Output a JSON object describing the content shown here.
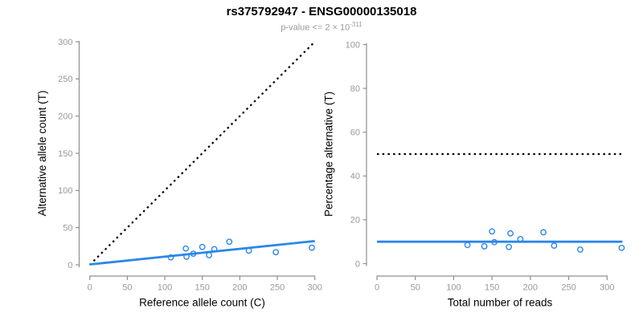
{
  "header": {
    "title": "rs375792947 - ENSG00000135018",
    "subtitle_prefix": "p-value <= 2 × 10",
    "subtitle_exponent": "-311"
  },
  "colors": {
    "accent_blue": "#2B87E8",
    "line_black": "#000000",
    "axis_gray": "#8F8F8F",
    "tick_label_gray": "#999999",
    "axis_title_color": "#000000"
  },
  "chart_data": [
    {
      "type": "scatter",
      "panel": "left",
      "xlabel": "Reference allele count (C)",
      "ylabel": "Alternative allele count (T)",
      "xlim": [
        0,
        300
      ],
      "ylim": [
        0,
        300
      ],
      "xticks": [
        0,
        50,
        100,
        150,
        200,
        250,
        300
      ],
      "yticks": [
        0,
        50,
        100,
        150,
        200,
        250,
        300
      ],
      "grid": false,
      "marker": {
        "shape": "open-circle",
        "radius": 3.2
      },
      "points": [
        [
          108,
          10
        ],
        [
          128,
          22
        ],
        [
          129,
          11
        ],
        [
          138,
          15
        ],
        [
          150,
          24
        ],
        [
          159,
          13
        ],
        [
          166,
          21
        ],
        [
          186,
          31
        ],
        [
          212,
          19
        ],
        [
          248,
          17
        ],
        [
          296,
          23
        ]
      ],
      "lines": [
        {
          "name": "identity-line",
          "style": "dotted",
          "color": "black",
          "from": [
            0,
            0
          ],
          "to": [
            300,
            300
          ]
        },
        {
          "name": "fit-line",
          "style": "solid",
          "color": "blue",
          "from": [
            0,
            0.5
          ],
          "to": [
            300,
            32
          ]
        }
      ]
    },
    {
      "type": "scatter",
      "panel": "right",
      "xlabel": "Total number of reads",
      "ylabel": "Percentage alternative (T)",
      "xlim": [
        0,
        300
      ],
      "ylim": [
        0,
        100
      ],
      "xticks": [
        0,
        50,
        100,
        150,
        200,
        250,
        300
      ],
      "yticks": [
        0,
        20,
        40,
        60,
        80,
        100
      ],
      "grid": false,
      "marker": {
        "shape": "open-circle",
        "radius": 3.2
      },
      "points": [
        [
          118,
          8.5
        ],
        [
          150,
          14.7
        ],
        [
          140,
          7.9
        ],
        [
          153,
          9.8
        ],
        [
          174,
          13.8
        ],
        [
          172,
          7.6
        ],
        [
          187,
          11.2
        ],
        [
          217,
          14.3
        ],
        [
          231,
          8.2
        ],
        [
          265,
          6.4
        ],
        [
          319,
          7.2
        ]
      ],
      "lines": [
        {
          "name": "fifty-percent-line",
          "style": "dotted",
          "color": "black",
          "from": [
            0,
            50
          ],
          "to": [
            320,
            50
          ]
        },
        {
          "name": "fit-line",
          "style": "solid",
          "color": "blue",
          "from": [
            0,
            10
          ],
          "to": [
            320,
            10
          ]
        }
      ]
    }
  ]
}
